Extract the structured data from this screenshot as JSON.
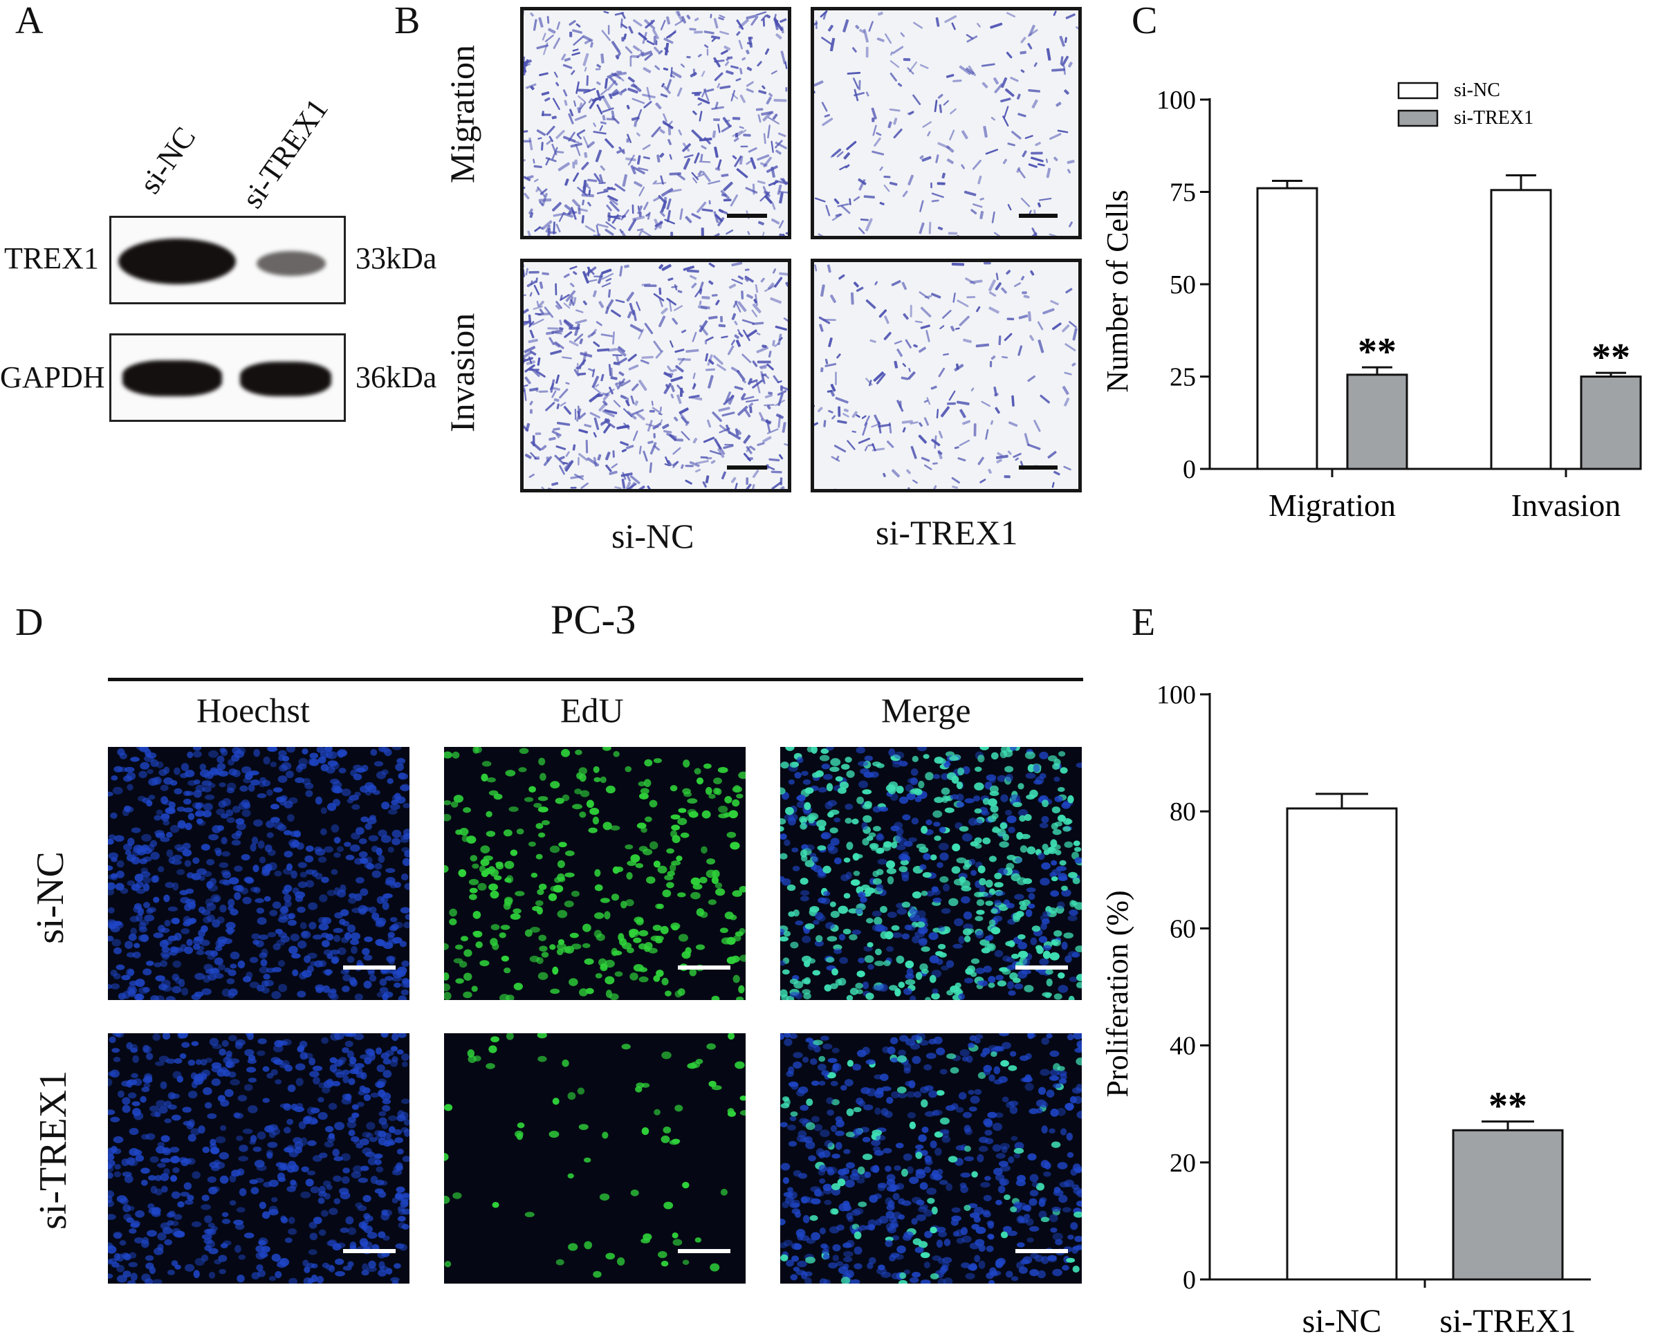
{
  "panels": {
    "a": "A",
    "b": "B",
    "c": "C",
    "d": "D",
    "e": "E"
  },
  "western_blot": {
    "lanes": [
      "si-NC",
      "si-TREX1"
    ],
    "rows": [
      {
        "protein": "TREX1",
        "size": "33kDa",
        "relative_intensity": [
          1.0,
          0.35
        ]
      },
      {
        "protein": "GAPDH",
        "size": "36kDa",
        "relative_intensity": [
          1.0,
          0.95
        ]
      }
    ]
  },
  "transwell": {
    "row_labels": [
      "Migration",
      "Invasion"
    ],
    "col_labels": [
      "si-NC",
      "si-TREX1"
    ],
    "stain_color": "#4a4fb0",
    "background_color": "#f1f3f6"
  },
  "edu": {
    "title": "PC-3",
    "col_labels": [
      "Hoechst",
      "EdU",
      "Merge"
    ],
    "row_labels": [
      "si-NC",
      "si-TREX1"
    ],
    "colors": {
      "hoechst": "#1f46c8",
      "edu": "#2fd23a",
      "merge": "#3fe0b4"
    }
  },
  "chart_data": [
    {
      "type": "bar",
      "categories": [
        "Migration",
        "Invasion"
      ],
      "series": [
        {
          "name": "si-NC",
          "values": [
            76,
            75.5
          ],
          "errors": [
            2,
            4
          ],
          "color": "#ffffff"
        },
        {
          "name": "si-TREX1",
          "values": [
            25.5,
            25
          ],
          "errors": [
            2,
            1
          ],
          "color": "#a0a3a6"
        }
      ],
      "significance": [
        "",
        "**"
      ],
      "sig_on_series": "si-TREX1",
      "sig_label": "**",
      "ylabel": "Number of Cells",
      "ylim": [
        0,
        100
      ],
      "yticks": [
        0,
        25,
        50,
        75,
        100
      ],
      "legend_position": "top-right"
    },
    {
      "type": "bar",
      "categories": [
        "si-NC",
        "si-TREX1"
      ],
      "values": [
        80.5,
        25.5
      ],
      "errors": [
        2.5,
        1.5
      ],
      "colors": [
        "#ffffff",
        "#a0a3a6"
      ],
      "sig_label": "**",
      "ylabel": "Proliferation (%)",
      "ylim": [
        0,
        100
      ],
      "yticks": [
        0,
        20,
        40,
        60,
        80,
        100
      ]
    }
  ]
}
